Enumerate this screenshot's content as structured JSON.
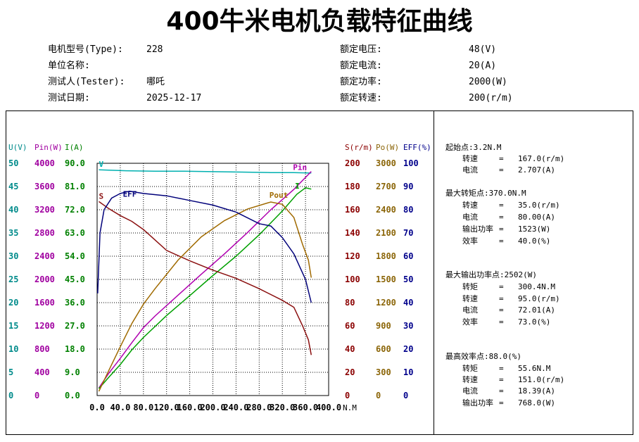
{
  "title": "400牛米电机负载特征曲线",
  "info": {
    "left": [
      {
        "label": "电机型号(Type):",
        "value": "228"
      },
      {
        "label": "单位名称:",
        "value": ""
      },
      {
        "label": "测试人(Tester):",
        "value": "哪吒"
      },
      {
        "label": "测试日期:",
        "value": "2025-12-17"
      }
    ],
    "right": [
      {
        "label": "额定电压:",
        "value": "48(V)"
      },
      {
        "label": "额定电流:",
        "value": "20(A)"
      },
      {
        "label": "额定功率:",
        "value": "2000(W)"
      },
      {
        "label": "额定转速:",
        "value": "200(r/m)"
      }
    ]
  },
  "stats": {
    "start_point": {
      "header": "起始点:3.2N.M",
      "rows": [
        {
          "label": "转速",
          "value": "167.0(r/m)"
        },
        {
          "label": "电流",
          "value": "2.707(A)"
        }
      ]
    },
    "max_torque_point": {
      "header": "最大转矩点:370.0N.M",
      "rows": [
        {
          "label": "转速",
          "value": "35.0(r/m)"
        },
        {
          "label": "电流",
          "value": "80.00(A)"
        },
        {
          "label": "输出功率",
          "value": "1523(W)"
        },
        {
          "label": "效率",
          "value": "40.0(%)"
        }
      ]
    },
    "max_output_point": {
      "header": "最大输出功率点:2502(W)",
      "rows": [
        {
          "label": "转矩",
          "value": "300.4N.M"
        },
        {
          "label": "转速",
          "value": "95.0(r/m)"
        },
        {
          "label": "电流",
          "value": "72.01(A)"
        },
        {
          "label": "效率",
          "value": "73.0(%)"
        }
      ]
    },
    "max_efficiency_point": {
      "header": "最高效率点:88.0(%)",
      "rows": [
        {
          "label": "转矩",
          "value": "55.6N.M"
        },
        {
          "label": "转速",
          "value": "151.0(r/m)"
        },
        {
          "label": "电流",
          "value": "18.39(A)"
        },
        {
          "label": "输出功率",
          "value": "768.0(W)"
        }
      ]
    }
  },
  "chart_data": {
    "type": "line",
    "x_unit": "N.M",
    "x_ticks": [
      "0.0",
      "40.0",
      "80.0",
      "120.0",
      "160.0",
      "200.0",
      "240.0",
      "280.0",
      "320.0",
      "360.0",
      "400.0"
    ],
    "xlim": [
      0,
      400
    ],
    "grid": true,
    "left_axes": [
      {
        "header": "U(V)",
        "color": "#008b8b",
        "ticks": [
          "0",
          "5",
          "10",
          "15",
          "20",
          "25",
          "30",
          "35",
          "40",
          "45",
          "50"
        ],
        "range": [
          0,
          50
        ]
      },
      {
        "header": "Pin(W)",
        "color": "#a000a0",
        "ticks": [
          "0",
          "400",
          "800",
          "1200",
          "1600",
          "2000",
          "2400",
          "2800",
          "3200",
          "3600",
          "4000"
        ],
        "range": [
          0,
          4000
        ]
      },
      {
        "header": "I(A)",
        "color": "#008000",
        "ticks": [
          "0.0",
          "9.0",
          "18.0",
          "27.0",
          "36.0",
          "45.0",
          "54.0",
          "63.0",
          "72.0",
          "81.0",
          "90.0"
        ],
        "range": [
          0,
          90
        ]
      }
    ],
    "right_axes": [
      {
        "header": "S(r/m)",
        "color": "#8b0000",
        "ticks": [
          "0",
          "20",
          "40",
          "60",
          "80",
          "100",
          "120",
          "140",
          "160",
          "180",
          "200"
        ],
        "range": [
          0,
          200
        ]
      },
      {
        "header": "Po(W)",
        "color": "#8b6508",
        "ticks": [
          "0",
          "300",
          "600",
          "900",
          "1200",
          "1500",
          "1800",
          "2100",
          "2400",
          "2700",
          "3000"
        ],
        "range": [
          0,
          3000
        ]
      },
      {
        "header": "EFF(%)",
        "color": "#00008b",
        "ticks": [
          "0",
          "10",
          "20",
          "30",
          "40",
          "50",
          "60",
          "70",
          "80",
          "90",
          "100"
        ],
        "range": [
          0,
          100
        ]
      }
    ],
    "series": [
      {
        "name": "V",
        "color": "#00b0b0",
        "axis": "U(V)",
        "points": [
          [
            3,
            48.6
          ],
          [
            50,
            48.4
          ],
          [
            100,
            48.3
          ],
          [
            150,
            48.3
          ],
          [
            200,
            48.2
          ],
          [
            250,
            48.1
          ],
          [
            300,
            48.0
          ],
          [
            340,
            48.0
          ],
          [
            370,
            47.9
          ]
        ]
      },
      {
        "name": "Pin",
        "color": "#b000b0",
        "axis": "Pin(W)",
        "points": [
          [
            3,
            130
          ],
          [
            20,
            380
          ],
          [
            40,
            640
          ],
          [
            60,
            910
          ],
          [
            80,
            1170
          ],
          [
            100,
            1370
          ],
          [
            140,
            1730
          ],
          [
            180,
            2090
          ],
          [
            220,
            2440
          ],
          [
            260,
            2810
          ],
          [
            300,
            3200
          ],
          [
            340,
            3550
          ],
          [
            370,
            3860
          ]
        ]
      },
      {
        "name": "I",
        "color": "#00a000",
        "axis": "I(A)",
        "points": [
          [
            3,
            2.7
          ],
          [
            20,
            7.0
          ],
          [
            40,
            12.0
          ],
          [
            60,
            17.7
          ],
          [
            80,
            22.5
          ],
          [
            120,
            31.0
          ],
          [
            160,
            38.7
          ],
          [
            200,
            46.5
          ],
          [
            240,
            54.0
          ],
          [
            280,
            62.3
          ],
          [
            320,
            71.5
          ],
          [
            345,
            78.0
          ],
          [
            360,
            80.5
          ],
          [
            370,
            80.0
          ]
        ]
      },
      {
        "name": "S",
        "color": "#8b1010",
        "axis": "S(r/m)",
        "points": [
          [
            3,
            167
          ],
          [
            20,
            161
          ],
          [
            40,
            155
          ],
          [
            60,
            150
          ],
          [
            80,
            143
          ],
          [
            100,
            134
          ],
          [
            120,
            125
          ],
          [
            160,
            116
          ],
          [
            200,
            108
          ],
          [
            240,
            101
          ],
          [
            280,
            92
          ],
          [
            320,
            82
          ],
          [
            340,
            76
          ],
          [
            355,
            60
          ],
          [
            365,
            48
          ],
          [
            370,
            35
          ]
        ]
      },
      {
        "name": "Pout",
        "color": "#a06a00",
        "axis": "Po(W)",
        "points": [
          [
            3,
            55
          ],
          [
            20,
            320
          ],
          [
            40,
            630
          ],
          [
            60,
            930
          ],
          [
            80,
            1180
          ],
          [
            100,
            1380
          ],
          [
            140,
            1750
          ],
          [
            180,
            2050
          ],
          [
            220,
            2260
          ],
          [
            260,
            2410
          ],
          [
            300,
            2500
          ],
          [
            320,
            2470
          ],
          [
            340,
            2300
          ],
          [
            355,
            1950
          ],
          [
            365,
            1750
          ],
          [
            370,
            1523
          ]
        ]
      },
      {
        "name": "EFF",
        "color": "#00007a",
        "axis": "EFF(%)",
        "points": [
          [
            1,
            44
          ],
          [
            5,
            70
          ],
          [
            12,
            80
          ],
          [
            25,
            85
          ],
          [
            40,
            87
          ],
          [
            56,
            88
          ],
          [
            80,
            87
          ],
          [
            120,
            86
          ],
          [
            160,
            84
          ],
          [
            200,
            82
          ],
          [
            240,
            79
          ],
          [
            280,
            74
          ],
          [
            300,
            73
          ],
          [
            320,
            68
          ],
          [
            340,
            61
          ],
          [
            360,
            50
          ],
          [
            370,
            40
          ]
        ]
      }
    ]
  }
}
